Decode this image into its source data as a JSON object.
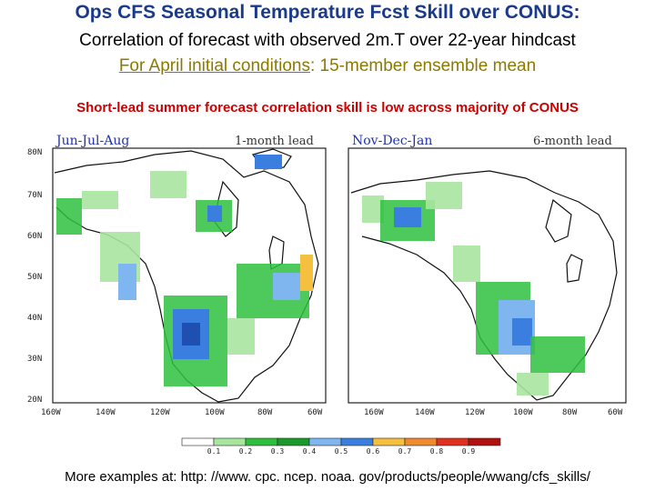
{
  "header": {
    "title": "Ops CFS Seasonal Temperature Fcst Skill over CONUS:",
    "subtitle_line1": "Correlation of forecast with observed 2m.T over 22-year hindcast",
    "subtitle_line2_underlined": "For April initial conditions",
    "subtitle_line2_rest": ": 15-member ensemble mean",
    "highlight": "Short-lead summer forecast correlation skill is low across majority of CONUS"
  },
  "panels": [
    {
      "season": "Jun-Jul-Aug",
      "lead": "1-month lead",
      "lat_labels": [
        "80N",
        "70N",
        "60N",
        "50N",
        "40N",
        "30N",
        "20N"
      ],
      "lon_labels": [
        "160W",
        "140W",
        "120W",
        "100W",
        "80W",
        "60W"
      ]
    },
    {
      "season": "Nov-Dec-Jan",
      "lead": "6-month lead",
      "lat_labels": [],
      "lon_labels": [
        "160W",
        "140W",
        "120W",
        "100W",
        "80W",
        "60W"
      ]
    }
  ],
  "colorbar": {
    "labels": [
      "0.1",
      "0.2",
      "0.3",
      "0.4",
      "0.5",
      "0.6",
      "0.7",
      "0.8",
      "0.9"
    ],
    "colors": [
      "#ffffff",
      "#a8e6a0",
      "#2fbf3f",
      "#1a9a2a",
      "#7fb6f0",
      "#3a7fe0",
      "#f5c040",
      "#f08a30",
      "#e03020",
      "#b01010"
    ]
  },
  "footer": {
    "text": "More examples at: http: //www. cpc. ncep. noaa. gov/products/people/wwang/cfs_skills/"
  }
}
